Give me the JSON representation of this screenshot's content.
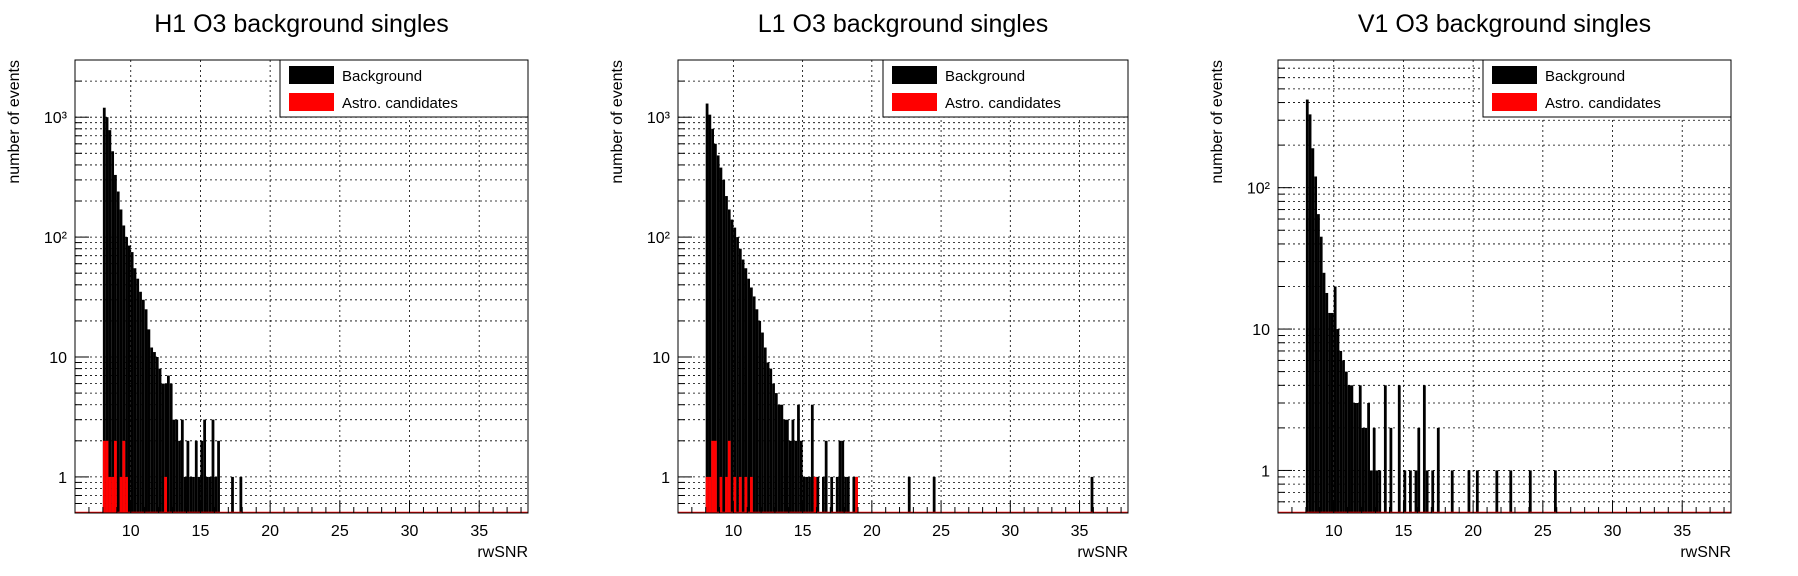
{
  "chart_data": [
    {
      "type": "bar",
      "title": "H1 O3 background singles",
      "xlabel": "rwSNR",
      "ylabel": "number of events",
      "xlim": [
        6,
        38.5
      ],
      "ylim": [
        0.5,
        3000
      ],
      "yscale": "log",
      "grid": true,
      "legend_position": "top-right",
      "x_ticks": [
        "10",
        "15",
        "20",
        "25",
        "30",
        "35"
      ],
      "y_ticks": [
        "1",
        "10",
        "10²",
        "10³"
      ],
      "bin_width": 0.2,
      "series": [
        {
          "name": "Background",
          "color": "#000000",
          "points": [
            [
              8.0,
              1200
            ],
            [
              8.2,
              1000
            ],
            [
              8.4,
              780
            ],
            [
              8.6,
              520
            ],
            [
              8.8,
              330
            ],
            [
              9.0,
              240
            ],
            [
              9.2,
              170
            ],
            [
              9.4,
              125
            ],
            [
              9.6,
              100
            ],
            [
              9.8,
              85
            ],
            [
              10.0,
              75
            ],
            [
              10.2,
              55
            ],
            [
              10.4,
              45
            ],
            [
              10.6,
              35
            ],
            [
              10.8,
              30
            ],
            [
              11.0,
              25
            ],
            [
              11.2,
              17
            ],
            [
              11.4,
              12
            ],
            [
              11.6,
              11
            ],
            [
              11.8,
              10
            ],
            [
              12.0,
              8
            ],
            [
              12.2,
              6
            ],
            [
              12.4,
              6
            ],
            [
              12.6,
              7
            ],
            [
              12.8,
              6
            ],
            [
              13.0,
              3
            ],
            [
              13.2,
              3
            ],
            [
              13.4,
              2
            ],
            [
              13.6,
              3
            ],
            [
              13.8,
              1
            ],
            [
              14.0,
              2
            ],
            [
              14.2,
              1
            ],
            [
              14.4,
              1
            ],
            [
              14.6,
              2
            ],
            [
              14.8,
              1
            ],
            [
              15.0,
              2
            ],
            [
              15.2,
              3
            ],
            [
              15.4,
              1
            ],
            [
              15.6,
              1
            ],
            [
              15.8,
              3
            ],
            [
              16.0,
              1
            ],
            [
              16.2,
              2
            ],
            [
              17.2,
              1
            ],
            [
              17.8,
              1
            ]
          ]
        },
        {
          "name": "Astro. candidates",
          "color": "#ff0000",
          "points": [
            [
              8.0,
              2
            ],
            [
              8.2,
              2
            ],
            [
              8.4,
              1
            ],
            [
              8.6,
              1
            ],
            [
              8.8,
              2
            ],
            [
              9.2,
              1
            ],
            [
              9.4,
              2
            ],
            [
              9.6,
              1
            ],
            [
              12.4,
              1
            ]
          ]
        }
      ]
    },
    {
      "type": "bar",
      "title": "L1 O3 background singles",
      "xlabel": "rwSNR",
      "ylabel": "number of events",
      "xlim": [
        6,
        38.5
      ],
      "ylim": [
        0.5,
        3000
      ],
      "yscale": "log",
      "grid": true,
      "legend_position": "top-right",
      "x_ticks": [
        "10",
        "15",
        "20",
        "25",
        "30",
        "35"
      ],
      "y_ticks": [
        "1",
        "10",
        "10²",
        "10³"
      ],
      "bin_width": 0.2,
      "series": [
        {
          "name": "Background",
          "color": "#000000",
          "points": [
            [
              8.0,
              1300
            ],
            [
              8.2,
              1050
            ],
            [
              8.4,
              800
            ],
            [
              8.6,
              600
            ],
            [
              8.8,
              480
            ],
            [
              9.0,
              380
            ],
            [
              9.2,
              300
            ],
            [
              9.4,
              220
            ],
            [
              9.6,
              170
            ],
            [
              9.8,
              140
            ],
            [
              10.0,
              120
            ],
            [
              10.2,
              100
            ],
            [
              10.4,
              80
            ],
            [
              10.6,
              65
            ],
            [
              10.8,
              55
            ],
            [
              11.0,
              45
            ],
            [
              11.2,
              38
            ],
            [
              11.4,
              32
            ],
            [
              11.6,
              25
            ],
            [
              11.8,
              20
            ],
            [
              12.0,
              16
            ],
            [
              12.2,
              12
            ],
            [
              12.4,
              9
            ],
            [
              12.6,
              8
            ],
            [
              12.8,
              6
            ],
            [
              13.0,
              5
            ],
            [
              13.2,
              4
            ],
            [
              13.4,
              4
            ],
            [
              13.6,
              3
            ],
            [
              13.8,
              3
            ],
            [
              14.0,
              2
            ],
            [
              14.2,
              3
            ],
            [
              14.4,
              2
            ],
            [
              14.6,
              4
            ],
            [
              14.8,
              2
            ],
            [
              15.0,
              1
            ],
            [
              15.2,
              1
            ],
            [
              15.4,
              1
            ],
            [
              15.6,
              4
            ],
            [
              15.8,
              1
            ],
            [
              16.0,
              1
            ],
            [
              16.4,
              1
            ],
            [
              16.6,
              2
            ],
            [
              17.0,
              1
            ],
            [
              17.4,
              1
            ],
            [
              17.6,
              2
            ],
            [
              17.8,
              2
            ],
            [
              18.0,
              1
            ],
            [
              18.2,
              1
            ],
            [
              18.6,
              1
            ],
            [
              18.8,
              1
            ],
            [
              22.6,
              1
            ],
            [
              24.4,
              1
            ],
            [
              35.8,
              1
            ]
          ]
        },
        {
          "name": "Astro. candidates",
          "color": "#ff0000",
          "points": [
            [
              8.0,
              1
            ],
            [
              8.2,
              1
            ],
            [
              8.4,
              2
            ],
            [
              8.6,
              2
            ],
            [
              9.0,
              1
            ],
            [
              9.4,
              1
            ],
            [
              9.6,
              2
            ],
            [
              10.0,
              1
            ],
            [
              10.4,
              1
            ],
            [
              10.8,
              1
            ],
            [
              11.2,
              1
            ],
            [
              15.8,
              1
            ],
            [
              18.8,
              1
            ]
          ]
        }
      ]
    },
    {
      "type": "bar",
      "title": "V1 O3 background singles",
      "xlabel": "rwSNR",
      "ylabel": "number of events",
      "xlim": [
        6,
        38.5
      ],
      "ylim": [
        0.5,
        800
      ],
      "yscale": "log",
      "grid": true,
      "legend_position": "top-right",
      "x_ticks": [
        "10",
        "15",
        "20",
        "25",
        "30",
        "35"
      ],
      "y_ticks": [
        "1",
        "10",
        "10²"
      ],
      "bin_width": 0.2,
      "series": [
        {
          "name": "Background",
          "color": "#000000",
          "points": [
            [
              8.0,
              420
            ],
            [
              8.2,
              330
            ],
            [
              8.4,
              190
            ],
            [
              8.6,
              120
            ],
            [
              8.8,
              65
            ],
            [
              9.0,
              45
            ],
            [
              9.2,
              25
            ],
            [
              9.4,
              18
            ],
            [
              9.6,
              13
            ],
            [
              9.8,
              13
            ],
            [
              10.0,
              20
            ],
            [
              10.2,
              10
            ],
            [
              10.4,
              7
            ],
            [
              10.6,
              6
            ],
            [
              10.8,
              5
            ],
            [
              11.0,
              4
            ],
            [
              11.2,
              4
            ],
            [
              11.4,
              3
            ],
            [
              11.6,
              3
            ],
            [
              11.8,
              4
            ],
            [
              12.0,
              2
            ],
            [
              12.2,
              2
            ],
            [
              12.4,
              3
            ],
            [
              12.6,
              1
            ],
            [
              12.8,
              2
            ],
            [
              13.0,
              1
            ],
            [
              13.2,
              1
            ],
            [
              13.6,
              4
            ],
            [
              14.0,
              2
            ],
            [
              14.6,
              4
            ],
            [
              15.0,
              1
            ],
            [
              15.4,
              1
            ],
            [
              15.8,
              1
            ],
            [
              16.0,
              2
            ],
            [
              16.4,
              4
            ],
            [
              16.6,
              1
            ],
            [
              17.0,
              1
            ],
            [
              17.4,
              2
            ],
            [
              18.4,
              1
            ],
            [
              19.6,
              1
            ],
            [
              20.2,
              1
            ],
            [
              21.6,
              1
            ],
            [
              22.6,
              1
            ],
            [
              24.0,
              1
            ],
            [
              25.8,
              1
            ]
          ]
        },
        {
          "name": "Astro. candidates",
          "color": "#ff0000",
          "points": []
        }
      ]
    }
  ]
}
